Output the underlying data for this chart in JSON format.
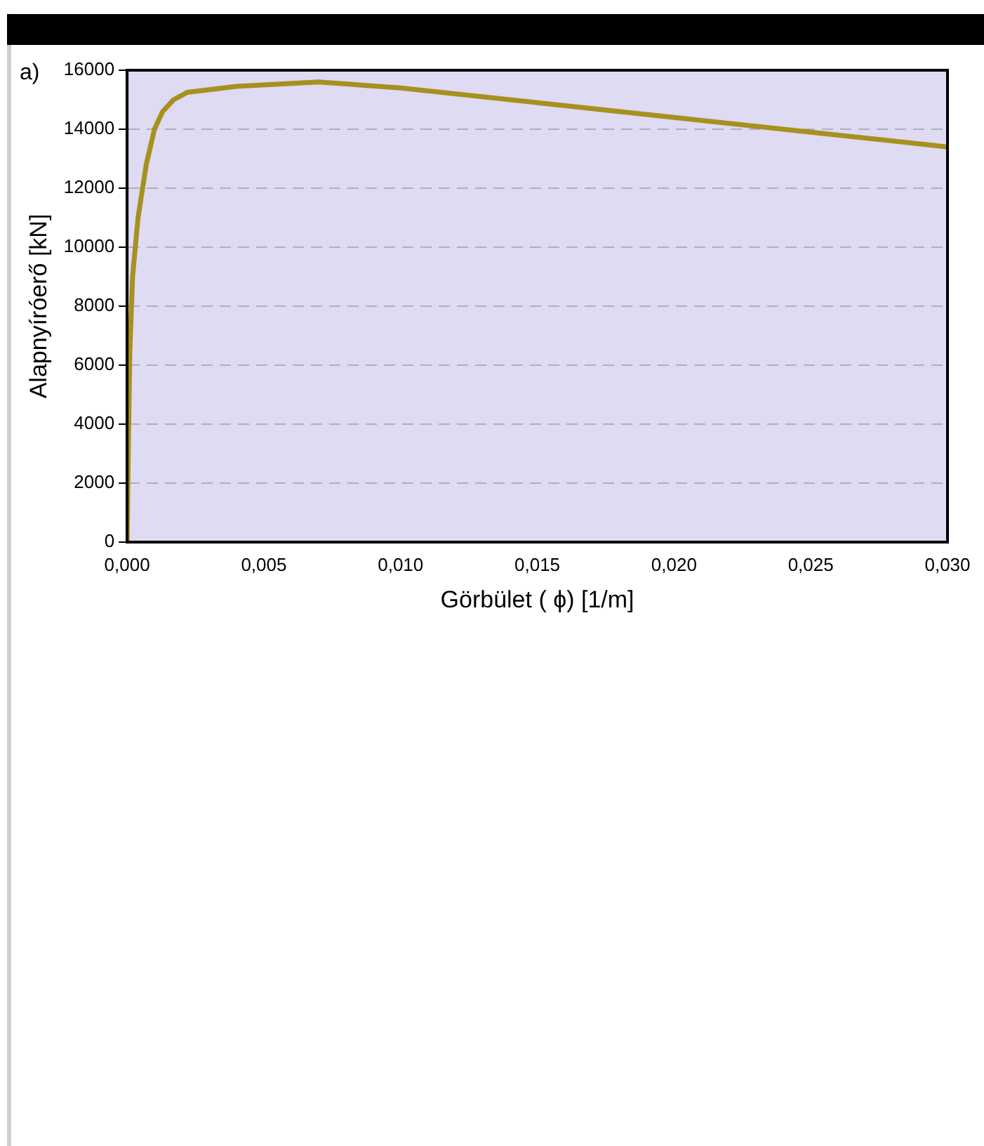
{
  "chart_data": {
    "type": "line",
    "xlabel": "Görbület ( ϕ) [1/m]",
    "ylabel": "Alapnyíróerő [kN]",
    "annotations": [
      "a)"
    ],
    "x": [
      0,
      5e-05,
      0.0001,
      0.0002,
      0.0004,
      0.0007,
      0.001,
      0.0013,
      0.0017,
      0.0022,
      0.004,
      0.007,
      0.01,
      0.015,
      0.02,
      0.025,
      0.03
    ],
    "series": [
      {
        "color": "#a8901e",
        "values": [
          0,
          3500,
          6500,
          9000,
          11000,
          12800,
          14000,
          14600,
          15000,
          15250,
          15450,
          15600,
          15400,
          14900,
          14400,
          13900,
          13400
        ]
      }
    ],
    "xlim": [
      0,
      0.03
    ],
    "xticks": [
      {
        "value": 0,
        "label": "0,000"
      },
      {
        "value": 0.005,
        "label": "0,005"
      },
      {
        "value": 0.01,
        "label": "0,010"
      },
      {
        "value": 0.015,
        "label": "0,015"
      },
      {
        "value": 0.02,
        "label": "0,020"
      },
      {
        "value": 0.025,
        "label": "0,025"
      },
      {
        "value": 0.03,
        "label": "0,030"
      }
    ],
    "ylim": [
      0,
      16000
    ],
    "yticks": [
      0,
      2000,
      4000,
      6000,
      8000,
      10000,
      12000,
      14000,
      16000
    ],
    "grid": "y",
    "legend": false,
    "marker": "none",
    "line_style": "solid"
  }
}
